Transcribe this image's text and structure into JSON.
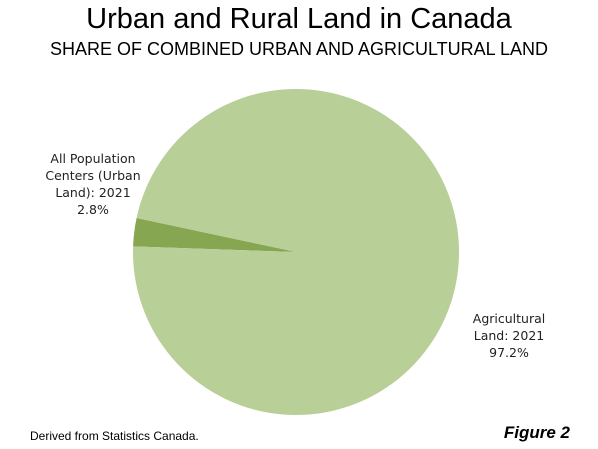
{
  "chart_data": {
    "type": "pie",
    "title": "Urban and Rural Land in Canada",
    "subtitle": "SHARE OF COMBINED URBAN AND AGRICULTURAL LAND",
    "slices": [
      {
        "label_lines": [
          "All Population",
          "Centers (Urban",
          "Land): 2021"
        ],
        "value": 2.8,
        "value_label": "2.8%",
        "color": "#86a651"
      },
      {
        "label_lines": [
          "Agricultural",
          "Land: 2021"
        ],
        "value": 97.2,
        "value_label": "97.2%",
        "color": "#b8cf98"
      }
    ]
  },
  "footer": {
    "source": "Derived from Statistics Canada.",
    "figure_label": "Figure 2"
  }
}
